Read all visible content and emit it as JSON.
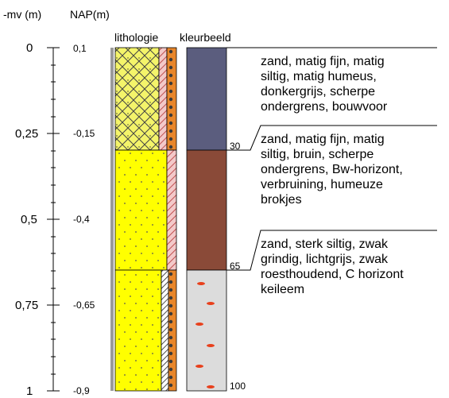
{
  "headers": {
    "depth_mv": "-mv (m)",
    "depth_nap": "NAP(m)",
    "lithology": "lithologie",
    "color": "kleurbeeld"
  },
  "depth_ticks": [
    {
      "mv": "0",
      "nap": "0,1"
    },
    {
      "mv": "0,25",
      "nap": "-0,15"
    },
    {
      "mv": "0,5",
      "nap": "-0,4"
    },
    {
      "mv": "0,75",
      "nap": "-0,65"
    },
    {
      "mv": "1",
      "nap": "-0,9"
    }
  ],
  "layers": [
    {
      "top_cm": 0,
      "bottom_cm": 30,
      "bottom_label": "30",
      "color": "#5b5d7e",
      "description": "zand, matig fijn, matig\nsiltig, matig humeus,\ndonkergrijs, scherpe\nondergrens, bouwvoor"
    },
    {
      "top_cm": 30,
      "bottom_cm": 65,
      "bottom_label": "65",
      "color": "#8a4a38",
      "description": "zand, matig fijn, matig\nsiltig, bruin, scherpe\nondergrens, Bw-horizont,\nverbruining, humeuze\nbrokjes"
    },
    {
      "top_cm": 65,
      "bottom_cm": 100,
      "bottom_label": "100",
      "color": "#dcdcdc",
      "description": "zand, sterk siltig, zwak\ngrindig, lichtgrijs, zwak\nroesthoudend, C horizont\nkeileem"
    }
  ],
  "colors": {
    "sand": "#ffff33",
    "mottle": "#e8401c"
  }
}
